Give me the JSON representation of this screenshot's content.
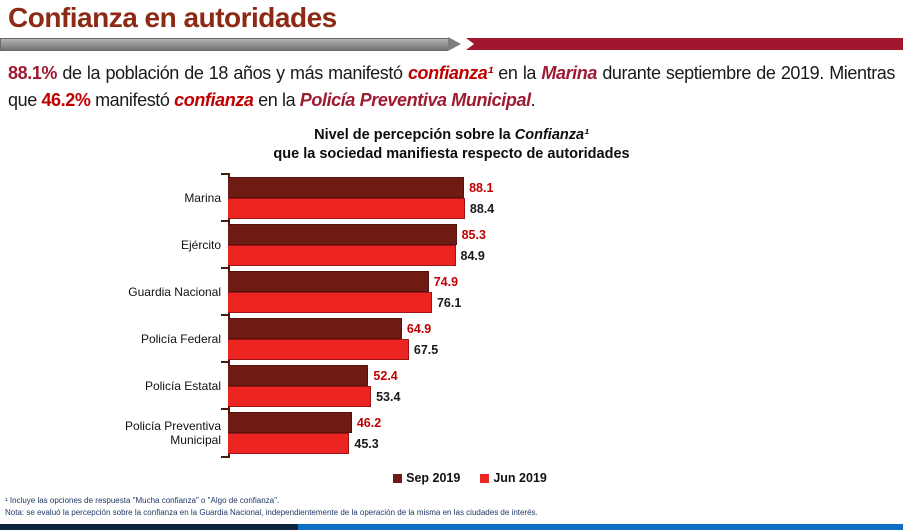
{
  "page": {
    "title": "Confianza en autoridades"
  },
  "intro": {
    "segments": [
      {
        "text": "88.1%",
        "style": "dark"
      },
      {
        "text": " de la población de 18 años y más manifestó ",
        "style": "plain"
      },
      {
        "text": "confianza¹",
        "style": "red-italic"
      },
      {
        "text": " en la ",
        "style": "plain"
      },
      {
        "text": "Marina",
        "style": "dark-italic"
      },
      {
        "text": " durante septiembre de 2019. Mientras que ",
        "style": "plain"
      },
      {
        "text": "46.2%",
        "style": "red"
      },
      {
        "text": " manifestó ",
        "style": "plain"
      },
      {
        "text": "confianza",
        "style": "red-italic"
      },
      {
        "text": " en la ",
        "style": "plain"
      },
      {
        "text": "Policía Preventiva Municipal",
        "style": "dark-italic"
      },
      {
        "text": ".",
        "style": "plain"
      }
    ]
  },
  "chart_data": {
    "type": "bar",
    "orientation": "horizontal",
    "title": {
      "line1_prefix": "Nivel de percepción sobre la ",
      "line1_italic": "Confianza¹",
      "line2": "que la sociedad manifiesta respecto de autoridades"
    },
    "categories": [
      "Marina",
      "Ejército",
      "Guardia Nacional",
      "Policía Federal",
      "Policía Estatal",
      "Policía Preventiva Municipal"
    ],
    "series": [
      {
        "name": "Sep 2019",
        "values": [
          88.1,
          85.3,
          74.9,
          64.9,
          52.4,
          46.2
        ],
        "bar_color": "#6E1C13",
        "label_color": "#C00000"
      },
      {
        "name": "Jun 2019",
        "values": [
          88.4,
          84.9,
          76.1,
          67.5,
          53.4,
          45.3
        ],
        "bar_color": "#EC2422",
        "label_color": "#1a1a1a"
      }
    ],
    "xlim": [
      0,
      100
    ],
    "grid": false,
    "legend_position": "bottom"
  },
  "footnotes": {
    "line1": "¹ Incluye las opciones de respuesta \"Mucha confianza\" o \"Algo de confianza\".",
    "line2": "Nota: se evaluó la percepción sobre la confianza en la Guardia Nacional, independientemente de la operación de la misma en las ciudades de interés."
  },
  "colors": {
    "title": "#8C2A16",
    "dark_text": "#9E1B32",
    "red_text": "#C00000",
    "header_bar_red": "#A1182E",
    "axis": "#4D190E",
    "footnote": "#1F3864",
    "bottom_bar_left": "#0D2440",
    "bottom_bar_right": "#0F6FC5"
  }
}
